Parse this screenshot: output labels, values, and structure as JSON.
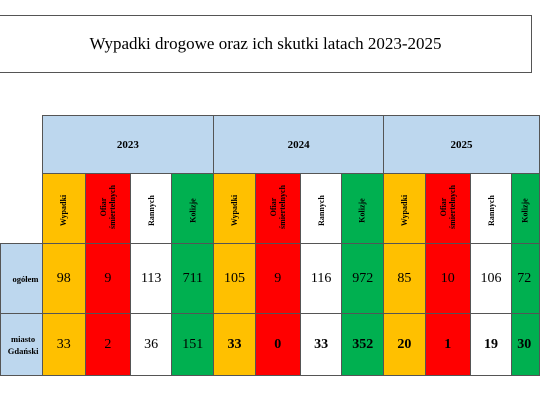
{
  "title": "Wypadki drogowe oraz ich skutki latach 2023-2025",
  "years": [
    "2023",
    "2024",
    "2025"
  ],
  "columns": {
    "accidents": "Wypadki",
    "fatalities": "Ofiar śmiertelnych",
    "injured": "Rannych",
    "collisions": "Kolizje"
  },
  "rows": [
    {
      "label": "ogółem",
      "values": [
        "98",
        "9",
        "113",
        "711",
        "105",
        "9",
        "116",
        "972",
        "85",
        "10",
        "106",
        "72"
      ]
    },
    {
      "label_line1": "miasto",
      "label_line2": "Gdański",
      "values": [
        "33",
        "2",
        "36",
        "151",
        "33",
        "0",
        "33",
        "352",
        "20",
        "1",
        "19",
        "30"
      ]
    }
  ],
  "colors": {
    "header_blue": "#bdd7ee",
    "accidents": "#ffc000",
    "fatalities": "#ff0000",
    "injured": "#ffffff",
    "collisions": "#00b050"
  }
}
